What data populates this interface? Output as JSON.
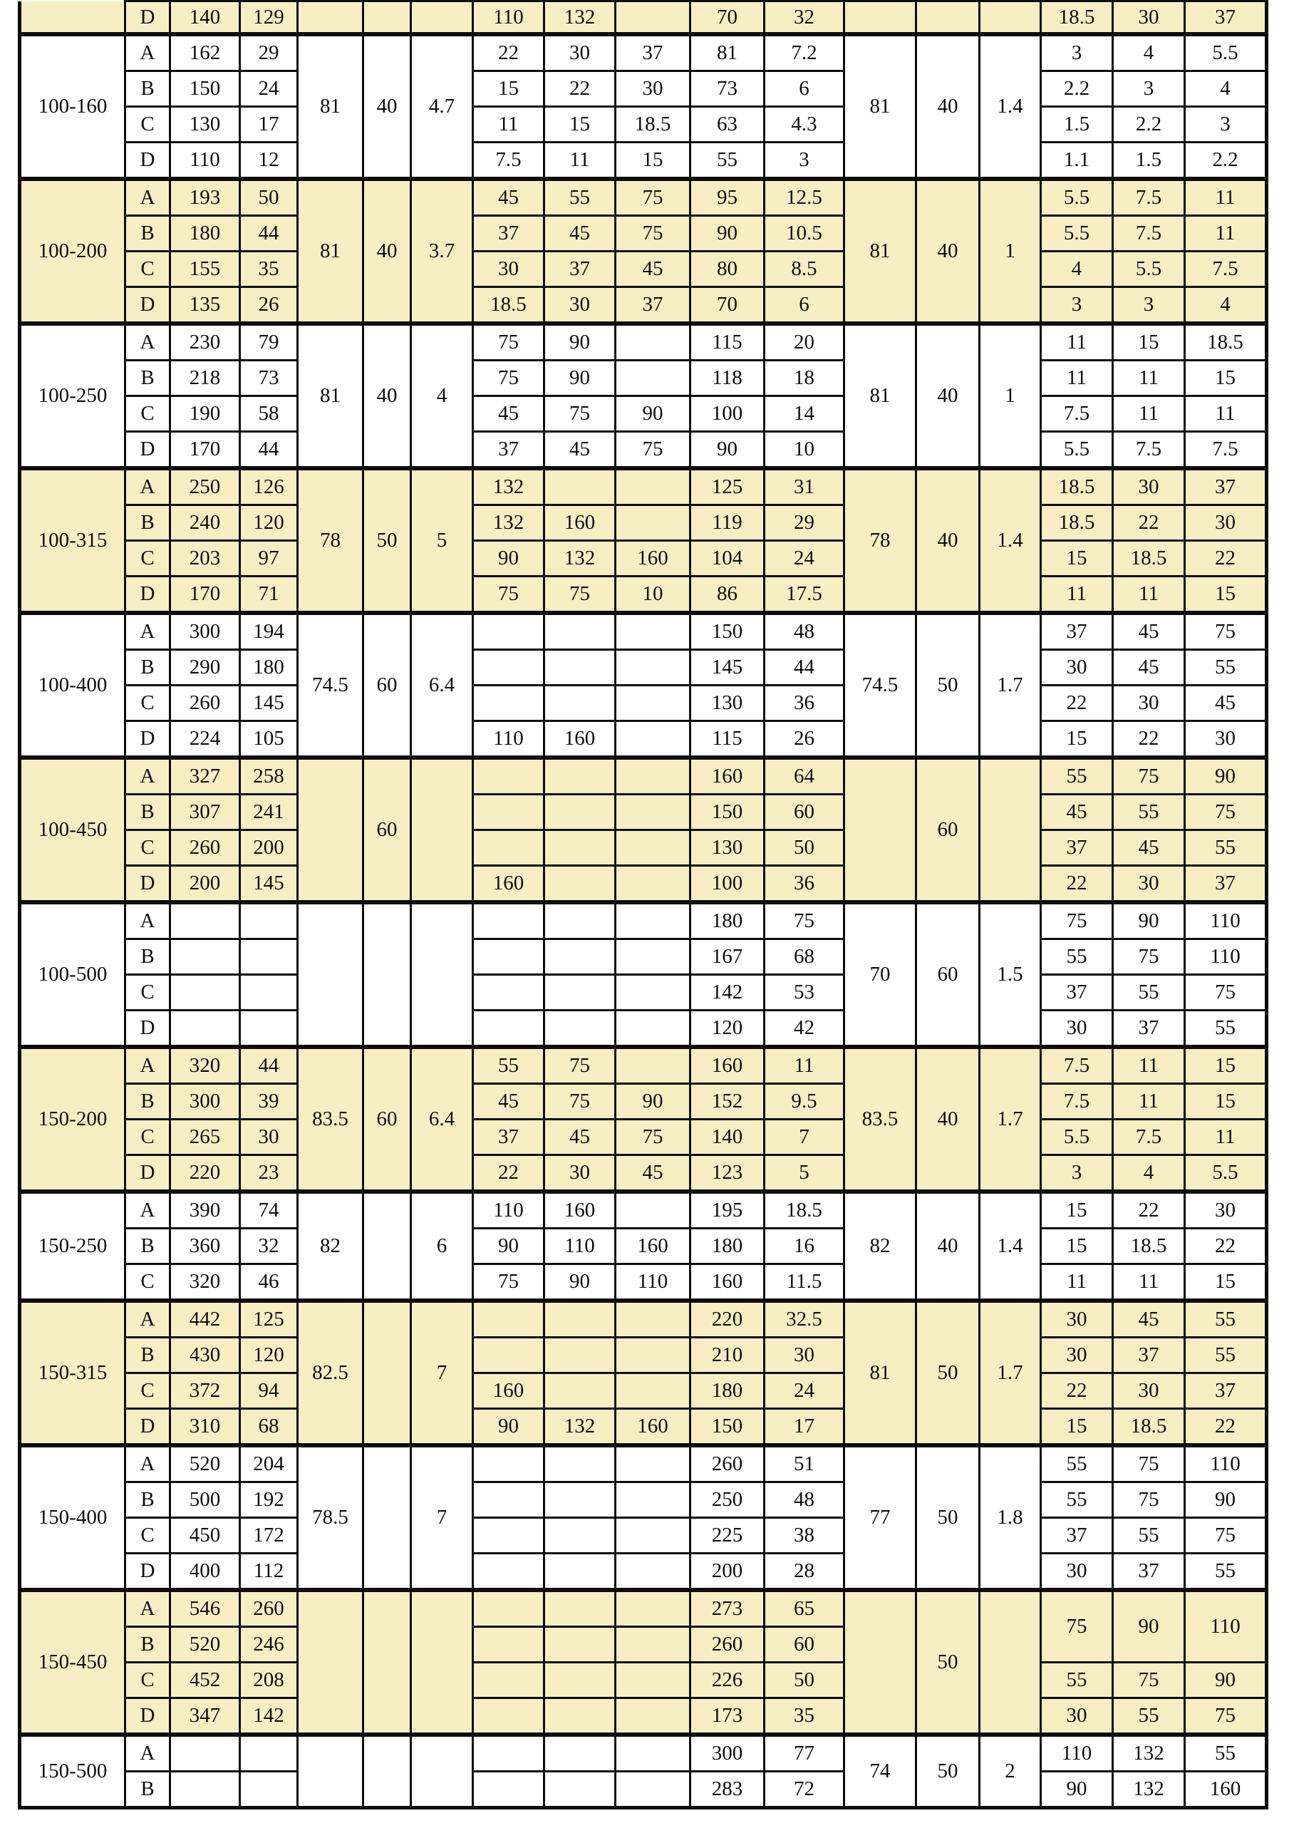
{
  "document": {
    "kind": "printed-specification-table",
    "colors": {
      "band_row": "#F8EEC3",
      "plain_row": "#FFFFFF",
      "border": "#0D0D0D",
      "text": "#0D0D0D"
    },
    "columns_count": 18,
    "row_cell_order": [
      "variant",
      "col3",
      "col4",
      "speed1",
      "speed2",
      "speed3",
      "col11",
      "col12",
      "power1",
      "power2",
      "power3"
    ],
    "groups": [
      {
        "model": "",
        "band": true,
        "partial": true,
        "merge_left": [
          "",
          "",
          ""
        ],
        "merge_right": [
          "",
          "",
          ""
        ],
        "rows": [
          [
            "D",
            "140",
            "129",
            "110",
            "132",
            "",
            "70",
            "32",
            "18.5",
            "30",
            "37"
          ]
        ]
      },
      {
        "model": "100-160",
        "band": false,
        "merge_left": [
          "81",
          "40",
          "4.7"
        ],
        "merge_right": [
          "81",
          "40",
          "1.4"
        ],
        "rows": [
          [
            "A",
            "162",
            "29",
            "22",
            "30",
            "37",
            "81",
            "7.2",
            "3",
            "4",
            "5.5"
          ],
          [
            "B",
            "150",
            "24",
            "15",
            "22",
            "30",
            "73",
            "6",
            "2.2",
            "3",
            "4"
          ],
          [
            "C",
            "130",
            "17",
            "11",
            "15",
            "18.5",
            "63",
            "4.3",
            "1.5",
            "2.2",
            "3"
          ],
          [
            "D",
            "110",
            "12",
            "7.5",
            "11",
            "15",
            "55",
            "3",
            "1.1",
            "1.5",
            "2.2"
          ]
        ]
      },
      {
        "model": "100-200",
        "band": true,
        "merge_left": [
          "81",
          "40",
          "3.7"
        ],
        "merge_right": [
          "81",
          "40",
          "1"
        ],
        "rows": [
          [
            "A",
            "193",
            "50",
            "45",
            "55",
            "75",
            "95",
            "12.5",
            "5.5",
            "7.5",
            "11"
          ],
          [
            "B",
            "180",
            "44",
            "37",
            "45",
            "75",
            "90",
            "10.5",
            "5.5",
            "7.5",
            "11"
          ],
          [
            "C",
            "155",
            "35",
            "30",
            "37",
            "45",
            "80",
            "8.5",
            "4",
            "5.5",
            "7.5"
          ],
          [
            "D",
            "135",
            "26",
            "18.5",
            "30",
            "37",
            "70",
            "6",
            "3",
            "3",
            "4"
          ]
        ]
      },
      {
        "model": "100-250",
        "band": false,
        "merge_left": [
          "81",
          "40",
          "4"
        ],
        "merge_right": [
          "81",
          "40",
          "1"
        ],
        "rows": [
          [
            "A",
            "230",
            "79",
            "75",
            "90",
            "",
            "115",
            "20",
            "11",
            "15",
            "18.5"
          ],
          [
            "B",
            "218",
            "73",
            "75",
            "90",
            "",
            "118",
            "18",
            "11",
            "11",
            "15"
          ],
          [
            "C",
            "190",
            "58",
            "45",
            "75",
            "90",
            "100",
            "14",
            "7.5",
            "11",
            "11"
          ],
          [
            "D",
            "170",
            "44",
            "37",
            "45",
            "75",
            "90",
            "10",
            "5.5",
            "7.5",
            "7.5"
          ]
        ]
      },
      {
        "model": "100-315",
        "band": true,
        "merge_left": [
          "78",
          "50",
          "5"
        ],
        "merge_right": [
          "78",
          "40",
          "1.4"
        ],
        "rows": [
          [
            "A",
            "250",
            "126",
            "132",
            "",
            "",
            "125",
            "31",
            "18.5",
            "30",
            "37"
          ],
          [
            "B",
            "240",
            "120",
            "132",
            "160",
            "",
            "119",
            "29",
            "18.5",
            "22",
            "30"
          ],
          [
            "C",
            "203",
            "97",
            "90",
            "132",
            "160",
            "104",
            "24",
            "15",
            "18.5",
            "22"
          ],
          [
            "D",
            "170",
            "71",
            "75",
            "75",
            "10",
            "86",
            "17.5",
            "11",
            "11",
            "15"
          ]
        ]
      },
      {
        "model": "100-400",
        "band": false,
        "merge_left": [
          "74.5",
          "60",
          "6.4"
        ],
        "merge_right": [
          "74.5",
          "50",
          "1.7"
        ],
        "rows": [
          [
            "A",
            "300",
            "194",
            "",
            "",
            "",
            "150",
            "48",
            "37",
            "45",
            "75"
          ],
          [
            "B",
            "290",
            "180",
            "",
            "",
            "",
            "145",
            "44",
            "30",
            "45",
            "55"
          ],
          [
            "C",
            "260",
            "145",
            "",
            "",
            "",
            "130",
            "36",
            "22",
            "30",
            "45"
          ],
          [
            "D",
            "224",
            "105",
            "110",
            "160",
            "",
            "115",
            "26",
            "15",
            "22",
            "30"
          ]
        ]
      },
      {
        "model": "100-450",
        "band": true,
        "merge_left": [
          "",
          "60",
          ""
        ],
        "merge_right": [
          "",
          "60",
          ""
        ],
        "rows": [
          [
            "A",
            "327",
            "258",
            "",
            "",
            "",
            "160",
            "64",
            "55",
            "75",
            "90"
          ],
          [
            "B",
            "307",
            "241",
            "",
            "",
            "",
            "150",
            "60",
            "45",
            "55",
            "75"
          ],
          [
            "C",
            "260",
            "200",
            "",
            "",
            "",
            "130",
            "50",
            "37",
            "45",
            "55"
          ],
          [
            "D",
            "200",
            "145",
            "160",
            "",
            "",
            "100",
            "36",
            "22",
            "30",
            "37"
          ]
        ]
      },
      {
        "model": "100-500",
        "band": false,
        "merge_left": [
          "",
          "",
          ""
        ],
        "merge_right": [
          "70",
          "60",
          "1.5"
        ],
        "rows": [
          [
            "A",
            "",
            "",
            "",
            "",
            "",
            "180",
            "75",
            "75",
            "90",
            "110"
          ],
          [
            "B",
            "",
            "",
            "",
            "",
            "",
            "167",
            "68",
            "55",
            "75",
            "110"
          ],
          [
            "C",
            "",
            "",
            "",
            "",
            "",
            "142",
            "53",
            "37",
            "55",
            "75"
          ],
          [
            "D",
            "",
            "",
            "",
            "",
            "",
            "120",
            "42",
            "30",
            "37",
            "55"
          ]
        ]
      },
      {
        "model": "150-200",
        "band": true,
        "merge_left": [
          "83.5",
          "60",
          "6.4"
        ],
        "merge_right": [
          "83.5",
          "40",
          "1.7"
        ],
        "rows": [
          [
            "A",
            "320",
            "44",
            "55",
            "75",
            "",
            "160",
            "11",
            "7.5",
            "11",
            "15"
          ],
          [
            "B",
            "300",
            "39",
            "45",
            "75",
            "90",
            "152",
            "9.5",
            "7.5",
            "11",
            "15"
          ],
          [
            "C",
            "265",
            "30",
            "37",
            "45",
            "75",
            "140",
            "7",
            "5.5",
            "7.5",
            "11"
          ],
          [
            "D",
            "220",
            "23",
            "22",
            "30",
            "45",
            "123",
            "5",
            "3",
            "4",
            "5.5"
          ]
        ]
      },
      {
        "model": "150-250",
        "band": false,
        "merge_left": [
          "82",
          "",
          "6"
        ],
        "merge_right": [
          "82",
          "40",
          "1.4"
        ],
        "rows": [
          [
            "A",
            "390",
            "74",
            "110",
            "160",
            "",
            "195",
            "18.5",
            "15",
            "22",
            "30"
          ],
          [
            "B",
            "360",
            "32",
            "90",
            "110",
            "160",
            "180",
            "16",
            "15",
            "18.5",
            "22"
          ],
          [
            "C",
            "320",
            "46",
            "75",
            "90",
            "110",
            "160",
            "11.5",
            "11",
            "11",
            "15"
          ]
        ]
      },
      {
        "model": "150-315",
        "band": true,
        "merge_left": [
          "82.5",
          "",
          "7"
        ],
        "merge_right": [
          "81",
          "50",
          "1.7"
        ],
        "rows": [
          [
            "A",
            "442",
            "125",
            "",
            "",
            "",
            "220",
            "32.5",
            "30",
            "45",
            "55"
          ],
          [
            "B",
            "430",
            "120",
            "",
            "",
            "",
            "210",
            "30",
            "30",
            "37",
            "55"
          ],
          [
            "C",
            "372",
            "94",
            "160",
            "",
            "",
            "180",
            "24",
            "22",
            "30",
            "37"
          ],
          [
            "D",
            "310",
            "68",
            "90",
            "132",
            "160",
            "150",
            "17",
            "15",
            "18.5",
            "22"
          ]
        ]
      },
      {
        "model": "150-400",
        "band": false,
        "merge_left": [
          "78.5",
          "",
          "7"
        ],
        "merge_right": [
          "77",
          "50",
          "1.8"
        ],
        "rows": [
          [
            "A",
            "520",
            "204",
            "",
            "",
            "",
            "260",
            "51",
            "55",
            "75",
            "110"
          ],
          [
            "B",
            "500",
            "192",
            "",
            "",
            "",
            "250",
            "48",
            "55",
            "75",
            "90"
          ],
          [
            "C",
            "450",
            "172",
            "",
            "",
            "",
            "225",
            "38",
            "37",
            "55",
            "75"
          ],
          [
            "D",
            "400",
            "112",
            "",
            "",
            "",
            "200",
            "28",
            "30",
            "37",
            "55"
          ]
        ]
      },
      {
        "model": "150-450",
        "band": true,
        "merge_left": [
          "",
          "",
          ""
        ],
        "merge_right": [
          "",
          "50",
          ""
        ],
        "p_merge": {
          "values": [
            "75",
            "90",
            "110"
          ],
          "span": 2
        },
        "rows": [
          [
            "A",
            "546",
            "260",
            "",
            "",
            "",
            "273",
            "65"
          ],
          [
            "B",
            "520",
            "246",
            "",
            "",
            "",
            "260",
            "60"
          ],
          [
            "C",
            "452",
            "208",
            "",
            "",
            "",
            "226",
            "50",
            "55",
            "75",
            "90"
          ],
          [
            "D",
            "347",
            "142",
            "",
            "",
            "",
            "173",
            "35",
            "30",
            "55",
            "75"
          ]
        ]
      },
      {
        "model": "150-500",
        "band": false,
        "merge_left": [
          "",
          "",
          ""
        ],
        "merge_right": [
          "74",
          "50",
          "2"
        ],
        "rows": [
          [
            "A",
            "",
            "",
            "",
            "",
            "",
            "300",
            "77",
            "110",
            "132",
            "55"
          ],
          [
            "B",
            "",
            "",
            "",
            "",
            "",
            "283",
            "72",
            "90",
            "132",
            "160"
          ]
        ]
      }
    ]
  }
}
